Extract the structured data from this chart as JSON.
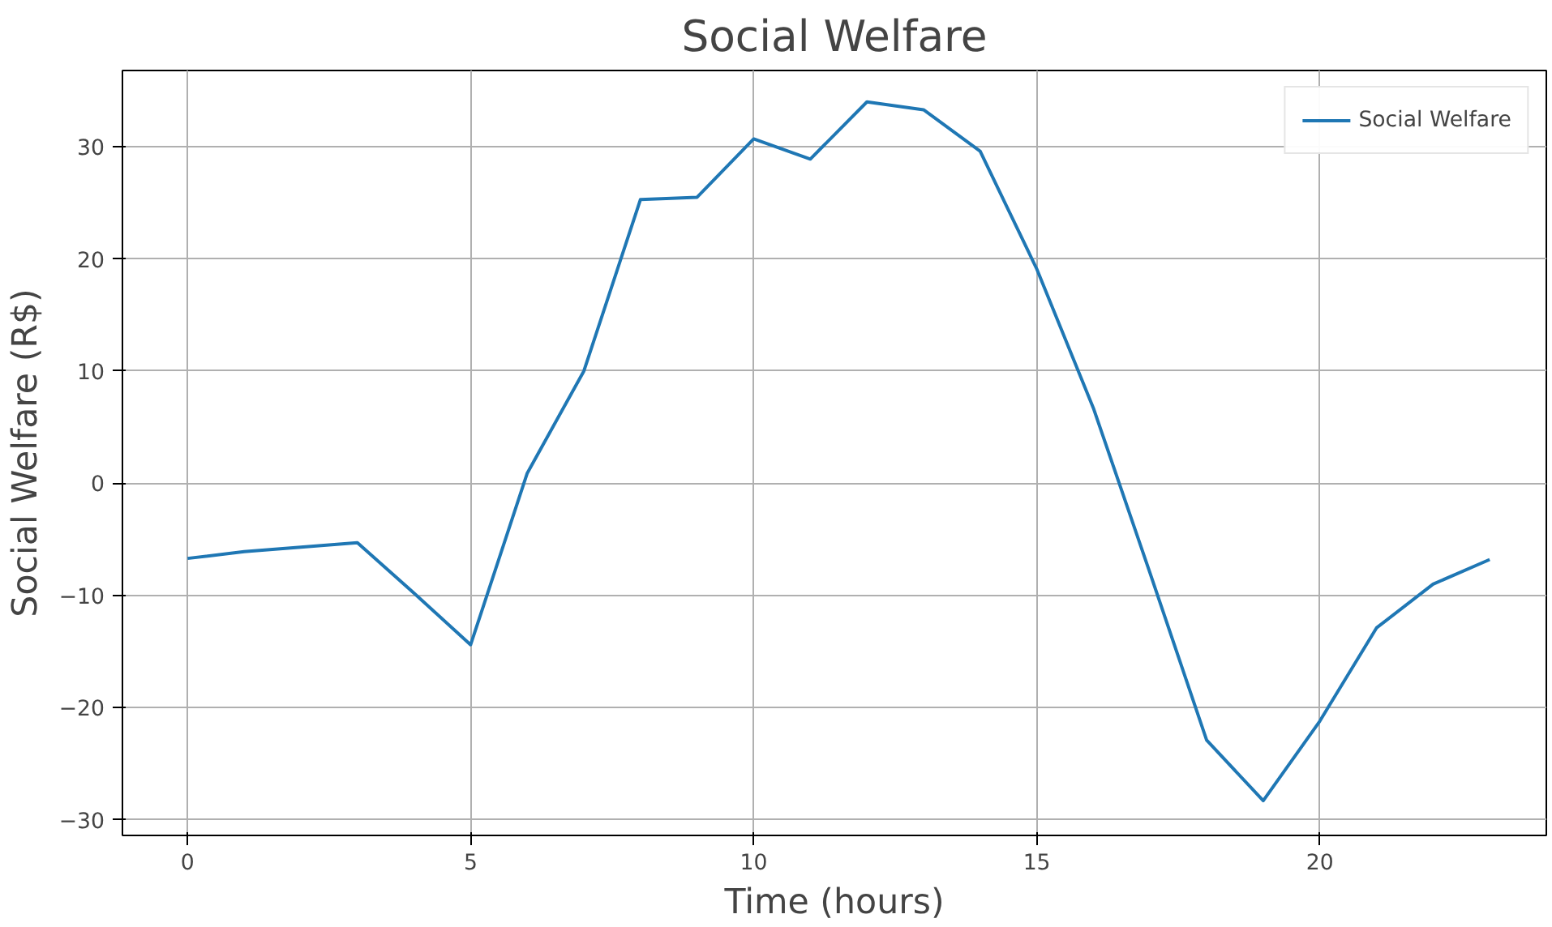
{
  "chart_data": {
    "type": "line",
    "title": "Social Welfare",
    "xlabel": "Time (hours)",
    "ylabel": "Social Welfare (R$)",
    "x": [
      0,
      1,
      2,
      3,
      4,
      5,
      6,
      7,
      8,
      9,
      10,
      11,
      12,
      13,
      14,
      15,
      16,
      17,
      18,
      19,
      20,
      21,
      22,
      23
    ],
    "series": [
      {
        "name": "Social Welfare",
        "color": "#1f77b4",
        "values": [
          -6.7,
          -6.1,
          -5.7,
          -5.3,
          -9.8,
          -14.4,
          0.9,
          10.0,
          25.3,
          25.5,
          30.7,
          28.9,
          34.0,
          33.3,
          29.6,
          19.1,
          6.7,
          -8.0,
          -22.9,
          -28.3,
          -21.2,
          -12.9,
          -9.0,
          -6.8
        ]
      }
    ],
    "xlim": [
      -1.15,
      24.0
    ],
    "ylim": [
      -31.4,
      36.8
    ],
    "xticks": [
      0,
      5,
      10,
      15,
      20
    ],
    "yticks": [
      -30,
      -20,
      -10,
      0,
      10,
      20,
      30
    ],
    "grid": true,
    "legend": "top right",
    "line_style": "solid",
    "marker": "none"
  }
}
